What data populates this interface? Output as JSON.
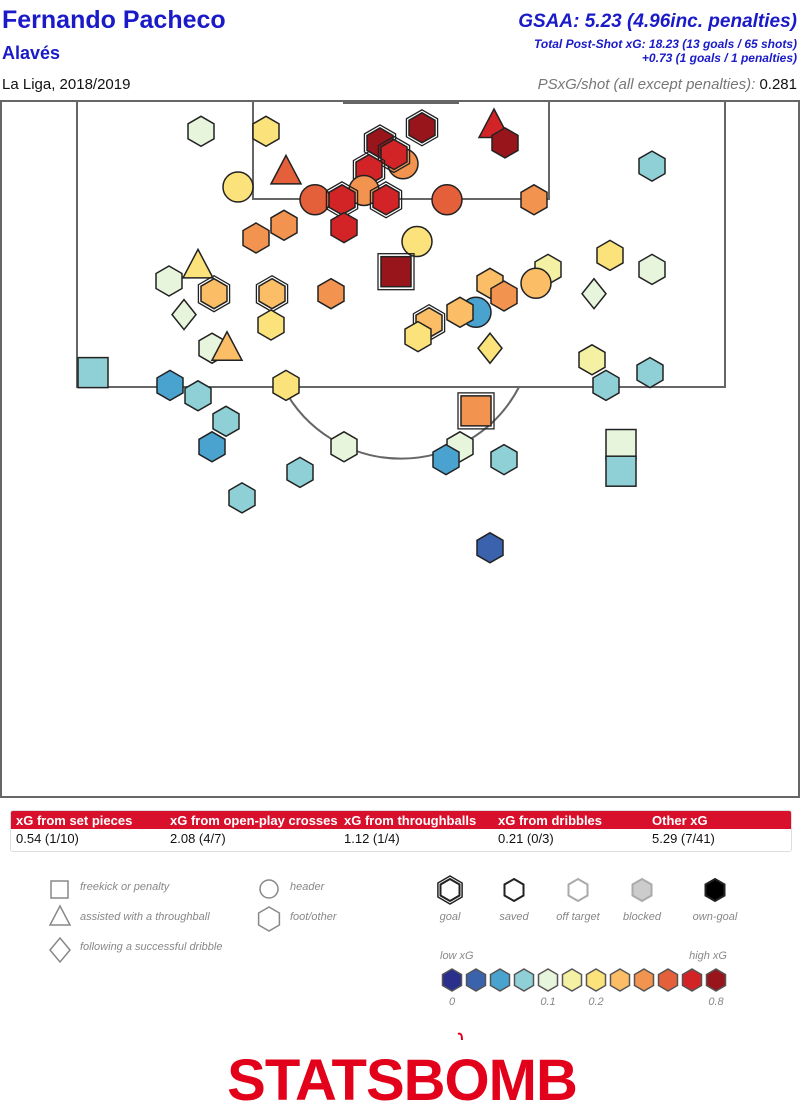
{
  "header": {
    "player": "Fernando Pacheco",
    "team": "Alavés",
    "season": "La Liga, 2018/2019",
    "gsaa": "GSAA: 5.23 (4.96inc. penalties)",
    "psxg_total": "Total Post-Shot xG: 18.23 (13 goals / 65 shots)",
    "psxg_pens": "+0.73 (1 goals / 1 penalties)",
    "psxg_per_shot_label": "PSxG/shot (all except penalties):",
    "psxg_per_shot_value": "0.281"
  },
  "xg_table": {
    "headers": [
      "xG from set pieces",
      "xG from open-play crosses",
      "xG from throughballs",
      "xG from dribbles",
      "Other xG"
    ],
    "values": [
      "0.54 (1/10)",
      "2.08 (4/7)",
      "1.12 (1/4)",
      "0.21 (0/3)",
      "5.29 (7/41)"
    ]
  },
  "legend": {
    "shape_items": [
      {
        "shape": "square",
        "label": "freekick or penalty"
      },
      {
        "shape": "triangle",
        "label": "assisted with a throughball"
      },
      {
        "shape": "diamond",
        "label": "following a successful dribble"
      },
      {
        "shape": "circle",
        "label": "header"
      },
      {
        "shape": "hexagon",
        "label": "foot/other"
      }
    ],
    "outcome_items": [
      {
        "outcome": "goal",
        "label": "goal"
      },
      {
        "outcome": "saved",
        "label": "saved"
      },
      {
        "outcome": "off_target",
        "label": "off target"
      },
      {
        "outcome": "blocked",
        "label": "blocked"
      },
      {
        "outcome": "own_goal",
        "label": "own-goal"
      }
    ],
    "scale_low": "low xG",
    "scale_high": "high xG",
    "scale_ticks": [
      "0",
      "0.1",
      "0.2",
      "0.8"
    ],
    "scale_colors": [
      "#2a2f8c",
      "#3a62ad",
      "#4aa3cf",
      "#8ed0d6",
      "#e6f5dc",
      "#f4f1a4",
      "#fbe27a",
      "#fbbe66",
      "#f29450",
      "#e3603a",
      "#d22426",
      "#99151c"
    ]
  },
  "logo_text": "STATSBOMB",
  "chart_data": {
    "type": "scatter",
    "title": "",
    "xlabel": "",
    "ylabel": "",
    "xlim": [
      0,
      80
    ],
    "ylim": [
      60,
      120
    ],
    "note": "x = pitch width (yards), y = pitch length toward goal (yards); color = xG bucket 0..11; outcome saved unless marked goal",
    "points": [
      {
        "x": 20.1,
        "y": 117.3,
        "shape": "hexagon",
        "color": 4,
        "outcome": "saved"
      },
      {
        "x": 26.6,
        "y": 117.3,
        "shape": "hexagon",
        "color": 6,
        "outcome": "saved"
      },
      {
        "x": 38.0,
        "y": 116.3,
        "shape": "hexagon",
        "color": 11,
        "outcome": "goal"
      },
      {
        "x": 42.2,
        "y": 117.6,
        "shape": "hexagon",
        "color": 11,
        "outcome": "goal"
      },
      {
        "x": 49.4,
        "y": 117.8,
        "shape": "triangle",
        "color": 10,
        "outcome": "saved"
      },
      {
        "x": 50.5,
        "y": 116.3,
        "shape": "hexagon",
        "color": 11,
        "outcome": "saved"
      },
      {
        "x": 28.6,
        "y": 113.8,
        "shape": "triangle",
        "color": 9,
        "outcome": "saved"
      },
      {
        "x": 23.8,
        "y": 112.5,
        "shape": "circle",
        "color": 6,
        "outcome": "saved"
      },
      {
        "x": 40.3,
        "y": 114.5,
        "shape": "circle",
        "color": 8,
        "outcome": "saved"
      },
      {
        "x": 39.4,
        "y": 115.3,
        "shape": "hexagon",
        "color": 10,
        "outcome": "goal"
      },
      {
        "x": 36.9,
        "y": 114.0,
        "shape": "hexagon",
        "color": 10,
        "outcome": "goal"
      },
      {
        "x": 36.4,
        "y": 112.2,
        "shape": "circle",
        "color": 8,
        "outcome": "saved"
      },
      {
        "x": 31.5,
        "y": 111.4,
        "shape": "circle",
        "color": 9,
        "outcome": "saved"
      },
      {
        "x": 34.2,
        "y": 111.4,
        "shape": "hexagon",
        "color": 10,
        "outcome": "goal"
      },
      {
        "x": 38.6,
        "y": 111.4,
        "shape": "hexagon",
        "color": 10,
        "outcome": "goal"
      },
      {
        "x": 44.7,
        "y": 111.4,
        "shape": "circle",
        "color": 9,
        "outcome": "saved"
      },
      {
        "x": 53.4,
        "y": 111.4,
        "shape": "hexagon",
        "color": 8,
        "outcome": "saved"
      },
      {
        "x": 65.2,
        "y": 114.3,
        "shape": "hexagon",
        "color": 3,
        "outcome": "saved"
      },
      {
        "x": 28.4,
        "y": 109.2,
        "shape": "hexagon",
        "color": 8,
        "outcome": "saved"
      },
      {
        "x": 25.6,
        "y": 108.1,
        "shape": "hexagon",
        "color": 8,
        "outcome": "saved"
      },
      {
        "x": 34.4,
        "y": 109.0,
        "shape": "hexagon",
        "color": 10,
        "outcome": "saved"
      },
      {
        "x": 41.7,
        "y": 107.8,
        "shape": "circle",
        "color": 6,
        "outcome": "saved"
      },
      {
        "x": 39.6,
        "y": 105.2,
        "shape": "square",
        "color": 11,
        "outcome": "goal"
      },
      {
        "x": 61.0,
        "y": 106.6,
        "shape": "hexagon",
        "color": 6,
        "outcome": "saved"
      },
      {
        "x": 65.2,
        "y": 105.4,
        "shape": "hexagon",
        "color": 4,
        "outcome": "saved"
      },
      {
        "x": 54.8,
        "y": 105.4,
        "shape": "hexagon",
        "color": 5,
        "outcome": "saved"
      },
      {
        "x": 53.6,
        "y": 104.2,
        "shape": "circle",
        "color": 7,
        "outcome": "saved"
      },
      {
        "x": 19.8,
        "y": 105.7,
        "shape": "triangle",
        "color": 6,
        "outcome": "saved"
      },
      {
        "x": 16.9,
        "y": 104.4,
        "shape": "hexagon",
        "color": 4,
        "outcome": "saved"
      },
      {
        "x": 21.4,
        "y": 103.3,
        "shape": "hexagon",
        "color": 7,
        "outcome": "goal"
      },
      {
        "x": 27.2,
        "y": 103.3,
        "shape": "hexagon",
        "color": 7,
        "outcome": "goal"
      },
      {
        "x": 33.1,
        "y": 103.3,
        "shape": "hexagon",
        "color": 8,
        "outcome": "saved"
      },
      {
        "x": 49.0,
        "y": 104.2,
        "shape": "hexagon",
        "color": 7,
        "outcome": "saved"
      },
      {
        "x": 50.4,
        "y": 103.1,
        "shape": "hexagon",
        "color": 8,
        "outcome": "saved"
      },
      {
        "x": 59.4,
        "y": 103.3,
        "shape": "diamond",
        "color": 4,
        "outcome": "saved"
      },
      {
        "x": 18.4,
        "y": 101.5,
        "shape": "diamond",
        "color": 4,
        "outcome": "saved"
      },
      {
        "x": 47.6,
        "y": 101.7,
        "shape": "circle",
        "color": 2,
        "outcome": "saved"
      },
      {
        "x": 46.0,
        "y": 101.7,
        "shape": "hexagon",
        "color": 7,
        "outcome": "saved"
      },
      {
        "x": 27.1,
        "y": 100.6,
        "shape": "hexagon",
        "color": 6,
        "outcome": "saved"
      },
      {
        "x": 42.9,
        "y": 100.8,
        "shape": "hexagon",
        "color": 7,
        "outcome": "goal"
      },
      {
        "x": 41.8,
        "y": 99.6,
        "shape": "hexagon",
        "color": 6,
        "outcome": "saved"
      },
      {
        "x": 21.2,
        "y": 98.6,
        "shape": "hexagon",
        "color": 4,
        "outcome": "saved"
      },
      {
        "x": 22.7,
        "y": 98.6,
        "shape": "triangle",
        "color": 7,
        "outcome": "saved"
      },
      {
        "x": 49.0,
        "y": 98.6,
        "shape": "diamond",
        "color": 6,
        "outcome": "saved"
      },
      {
        "x": 9.3,
        "y": 96.5,
        "shape": "square",
        "color": 3,
        "outcome": "saved"
      },
      {
        "x": 17.0,
        "y": 95.4,
        "shape": "hexagon",
        "color": 2,
        "outcome": "saved"
      },
      {
        "x": 19.8,
        "y": 94.5,
        "shape": "hexagon",
        "color": 3,
        "outcome": "saved"
      },
      {
        "x": 28.6,
        "y": 95.4,
        "shape": "hexagon",
        "color": 6,
        "outcome": "saved"
      },
      {
        "x": 59.2,
        "y": 97.6,
        "shape": "hexagon",
        "color": 5,
        "outcome": "saved"
      },
      {
        "x": 60.6,
        "y": 95.4,
        "shape": "hexagon",
        "color": 3,
        "outcome": "saved"
      },
      {
        "x": 65.0,
        "y": 96.5,
        "shape": "hexagon",
        "color": 3,
        "outcome": "saved"
      },
      {
        "x": 47.6,
        "y": 93.2,
        "shape": "square",
        "color": 8,
        "outcome": "goal"
      },
      {
        "x": 22.6,
        "y": 92.3,
        "shape": "hexagon",
        "color": 3,
        "outcome": "saved"
      },
      {
        "x": 21.2,
        "y": 90.1,
        "shape": "hexagon",
        "color": 2,
        "outcome": "saved"
      },
      {
        "x": 34.4,
        "y": 90.1,
        "shape": "hexagon",
        "color": 4,
        "outcome": "saved"
      },
      {
        "x": 46.0,
        "y": 90.1,
        "shape": "hexagon",
        "color": 4,
        "outcome": "saved"
      },
      {
        "x": 44.6,
        "y": 89.0,
        "shape": "hexagon",
        "color": 2,
        "outcome": "saved"
      },
      {
        "x": 50.4,
        "y": 89.0,
        "shape": "hexagon",
        "color": 3,
        "outcome": "saved"
      },
      {
        "x": 62.1,
        "y": 90.3,
        "shape": "square",
        "color": 4,
        "outcome": "saved"
      },
      {
        "x": 62.1,
        "y": 88.0,
        "shape": "square",
        "color": 3,
        "outcome": "saved"
      },
      {
        "x": 30.0,
        "y": 87.9,
        "shape": "hexagon",
        "color": 3,
        "outcome": "saved"
      },
      {
        "x": 24.2,
        "y": 85.7,
        "shape": "hexagon",
        "color": 3,
        "outcome": "saved"
      },
      {
        "x": 49.0,
        "y": 81.4,
        "shape": "hexagon",
        "color": 1,
        "outcome": "saved"
      }
    ]
  }
}
